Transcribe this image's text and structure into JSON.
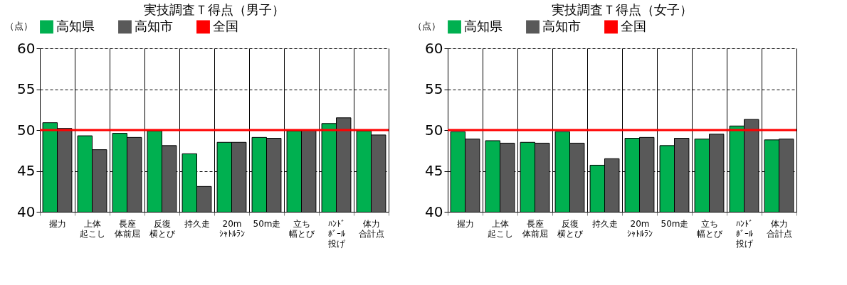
{
  "chart_data": [
    {
      "type": "bar",
      "title": "実技調査Ｔ得点（男子）",
      "ylabel": "（点）",
      "categories": [
        "握力",
        "上体起こし",
        "長座体前屈",
        "反復横とび",
        "持久走",
        "20mｼｬﾄﾙﾗﾝ",
        "50m走",
        "立ち幅とび",
        "ﾊﾝﾄﾞﾎﾞｰﾙ投げ",
        "体力合計点"
      ],
      "series": [
        {
          "name": "高知県",
          "color": "#00b050",
          "values": [
            50.9,
            49.3,
            49.6,
            49.9,
            47.1,
            48.5,
            49.1,
            49.9,
            50.8,
            49.9
          ]
        },
        {
          "name": "高知市",
          "color": "#595959",
          "values": [
            50.2,
            47.6,
            49.1,
            48.1,
            43.1,
            48.5,
            49.0,
            50.0,
            51.5,
            49.4
          ]
        }
      ],
      "ylim": [
        40,
        60
      ],
      "yticks": [
        40,
        45,
        50,
        55,
        60
      ],
      "grid": "y",
      "legend": "top",
      "ref_lines": [
        {
          "axis": "y",
          "value": 50,
          "label": "全国",
          "color": "#ff0000"
        }
      ]
    },
    {
      "type": "bar",
      "title": "実技調査Ｔ得点（女子）",
      "ylabel": "（点）",
      "categories": [
        "握力",
        "上体起こし",
        "長座体前屈",
        "反復横とび",
        "持久走",
        "20mｼｬﾄﾙﾗﾝ",
        "50m走",
        "立ち幅とび",
        "ﾊﾝﾄﾞﾎﾞｰﾙ投げ",
        "体力合計点"
      ],
      "series": [
        {
          "name": "高知県",
          "color": "#00b050",
          "values": [
            49.8,
            48.7,
            48.5,
            49.8,
            45.7,
            49.0,
            48.1,
            48.9,
            50.5,
            48.8
          ]
        },
        {
          "name": "高知市",
          "color": "#595959",
          "values": [
            48.9,
            48.4,
            48.4,
            48.4,
            46.5,
            49.1,
            49.0,
            49.5,
            51.3,
            48.9
          ]
        }
      ],
      "ylim": [
        40,
        60
      ],
      "yticks": [
        40,
        45,
        50,
        55,
        60
      ],
      "grid": "y",
      "legend": "top",
      "ref_lines": [
        {
          "axis": "y",
          "value": 50,
          "label": "全国",
          "color": "#ff0000"
        }
      ]
    }
  ]
}
